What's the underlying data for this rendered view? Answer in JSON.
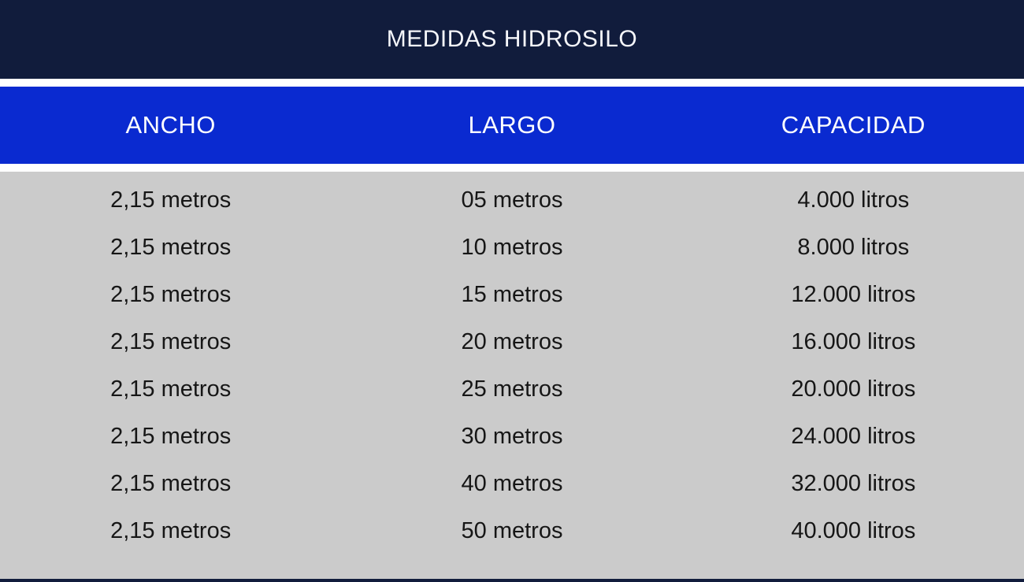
{
  "title": "MEDIDAS HIDROSILO",
  "colors": {
    "title_band_bg": "#111c3c",
    "header_band_bg": "#0a2ad0",
    "body_bg": "#cbcbcb",
    "header_text": "#ffffff",
    "data_text": "#161616",
    "separator": "#ffffff"
  },
  "table": {
    "columns": [
      "ANCHO",
      "LARGO",
      "CAPACIDAD"
    ],
    "rows": [
      [
        "2,15 metros",
        "05 metros",
        "4.000 litros"
      ],
      [
        "2,15 metros",
        "10 metros",
        "8.000 litros"
      ],
      [
        "2,15 metros",
        "15 metros",
        "12.000 litros"
      ],
      [
        "2,15 metros",
        "20 metros",
        "16.000 litros"
      ],
      [
        "2,15 metros",
        "25 metros",
        "20.000 litros"
      ],
      [
        "2,15 metros",
        "30 metros",
        "24.000 litros"
      ],
      [
        "2,15 metros",
        "40 metros",
        "32.000 litros"
      ],
      [
        "2,15 metros",
        "50 metros",
        "40.000 litros"
      ]
    ]
  },
  "chart_data": {
    "type": "table",
    "title": "MEDIDAS HIDROSILO",
    "columns": [
      "ANCHO",
      "LARGO",
      "CAPACIDAD"
    ],
    "rows": [
      [
        "2,15 metros",
        "05 metros",
        "4.000 litros"
      ],
      [
        "2,15 metros",
        "10 metros",
        "8.000 litros"
      ],
      [
        "2,15 metros",
        "15 metros",
        "12.000 litros"
      ],
      [
        "2,15 metros",
        "20 metros",
        "16.000 litros"
      ],
      [
        "2,15 metros",
        "25 metros",
        "20.000 litros"
      ],
      [
        "2,15 metros",
        "30 metros",
        "24.000 litros"
      ],
      [
        "2,15 metros",
        "40 metros",
        "32.000 litros"
      ],
      [
        "2,15 metros",
        "50 metros",
        "40.000 litros"
      ]
    ],
    "ancho_metros": [
      2.15,
      2.15,
      2.15,
      2.15,
      2.15,
      2.15,
      2.15,
      2.15
    ],
    "largo_metros": [
      5,
      10,
      15,
      20,
      25,
      30,
      40,
      50
    ],
    "capacidad_litros": [
      4000,
      8000,
      12000,
      16000,
      20000,
      24000,
      32000,
      40000
    ]
  }
}
